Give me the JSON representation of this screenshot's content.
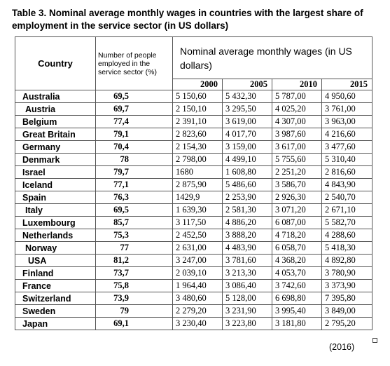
{
  "caption": "Table 3. Nominal average monthly wages in countries with the largest share of employment in the service   sector (in US dollars)",
  "headers": {
    "country": "Country",
    "employed": "Number of people employed in the service sector (%)",
    "wages": "Nominal average monthly wages (in US dollars)",
    "years": [
      "2000",
      "2005",
      "2010",
      "2015"
    ]
  },
  "rows": [
    {
      "country": "Australia",
      "employed": "69,5",
      "w2000": "5 150,60",
      "w2005": "5 432,30",
      "w2010": "5 787,00",
      "w2015": "4 950,60"
    },
    {
      "country": "Austria",
      "employed": "69,7",
      "w2000": "2 150,10",
      "w2005": "3 295,50",
      "w2010": "4 025,20",
      "w2015": "3 761,00"
    },
    {
      "country": "Belgium",
      "employed": "77,4",
      "w2000": "2 391,10",
      "w2005": "3 619,00",
      "w2010": "4 307,00",
      "w2015": "3 963,00"
    },
    {
      "country": "Great Britain",
      "employed": "79,1",
      "w2000": "2 823,60",
      "w2005": "4 017,70",
      "w2010": "3 987,60",
      "w2015": "4 216,60"
    },
    {
      "country": "Germany",
      "employed": "70,4",
      "w2000": "2 154,30",
      "w2005": "3 159,00",
      "w2010": "3 617,00",
      "w2015": "3 477,60"
    },
    {
      "country": "Denmark",
      "employed": "78",
      "w2000": "2 798,00",
      "w2005": "4 499,10",
      "w2010": "5 755,60",
      "w2015": "5 310,40"
    },
    {
      "country": "Israel",
      "employed": "79,7",
      "w2000": "1680",
      "w2005": "1 608,80",
      "w2010": "2 251,20",
      "w2015": "2 816,60"
    },
    {
      "country": "Iceland",
      "employed": "77,1",
      "w2000": "2 875,90",
      "w2005": "5 486,60",
      "w2010": "3 586,70",
      "w2015": "4 843,90"
    },
    {
      "country": "Spain",
      "employed": "76,3",
      "w2000": "1429,9",
      "w2005": "2 253,90",
      "w2010": "2 926,30",
      "w2015": "2 540,70"
    },
    {
      "country": "Italy",
      "employed": "69,5",
      "w2000": "1 639,30",
      "w2005": "2 581,30",
      "w2010": "3 071,20",
      "w2015": "2 671,10"
    },
    {
      "country": "Luxembourg",
      "employed": "85,7",
      "w2000": "3 117,50",
      "w2005": "4 886,20",
      "w2010": "6 087,00",
      "w2015": "5 582,70"
    },
    {
      "country": "Netherlands",
      "employed": "75,3",
      "w2000": "2 452,50",
      "w2005": "3 888,20",
      "w2010": "4 718,20",
      "w2015": "4 288,60"
    },
    {
      "country": "Norway",
      "employed": "77",
      "w2000": "2 631,00",
      "w2005": "4 483,90",
      "w2010": "6 058,70",
      "w2015": "5 418,30"
    },
    {
      "country": "USA",
      "employed": "81,2",
      "w2000": "3 247,00",
      "w2005": "3 781,60",
      "w2010": "4 368,20",
      "w2015": "4 892,80"
    },
    {
      "country": "Finland",
      "employed": "73,7",
      "w2000": "2 039,10",
      "w2005": "3 213,30",
      "w2010": "4 053,70",
      "w2015": "3 780,90"
    },
    {
      "country": "France",
      "employed": "75,8",
      "w2000": "1 964,40",
      "w2005": "3 086,40",
      "w2010": "3 742,60",
      "w2015": "3 373,90"
    },
    {
      "country": "Switzerland",
      "employed": "73,9",
      "w2000": "3 480,60",
      "w2005": "5 128,00",
      "w2010": "6 698,80",
      "w2015": "7 395,80"
    },
    {
      "country": "Sweden",
      "employed": "79",
      "w2000": "2 279,20",
      "w2005": "3 231,90",
      "w2010": "3 995,40",
      "w2015": "3 849,00"
    },
    {
      "country": "Japan",
      "employed": "69,1",
      "w2000": "3 230,40",
      "w2005": "3 223,80",
      "w2010": "3 181,80",
      "w2015": "2 795,20"
    }
  ],
  "source_note": "(2016)"
}
